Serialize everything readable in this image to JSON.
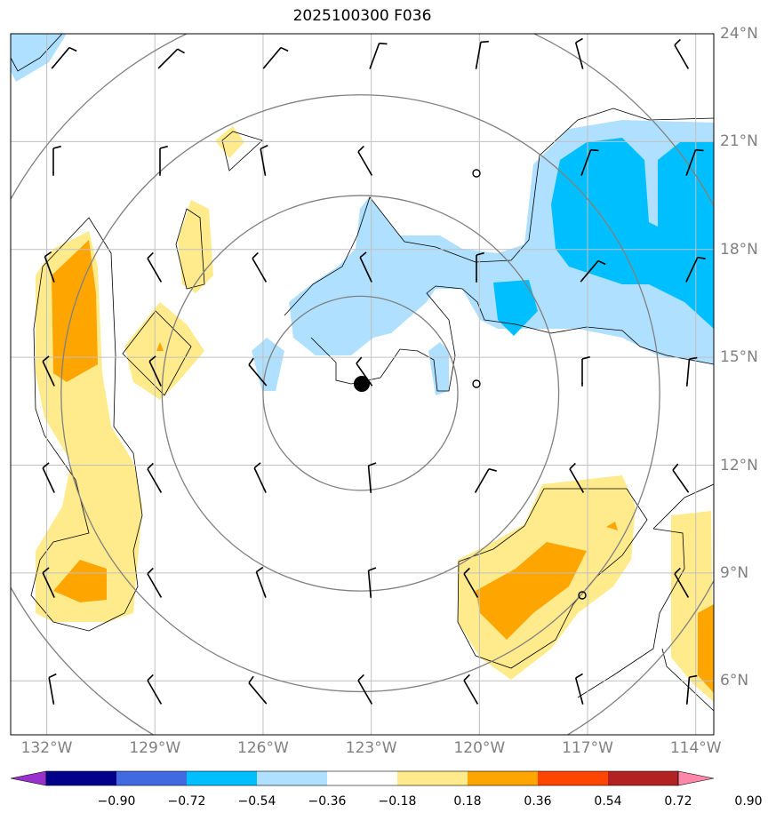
{
  "title": "2025100300 F036",
  "map": {
    "lon_range": [
      -133,
      -113.5
    ],
    "lat_range": [
      4.5,
      24
    ],
    "lat_ticks": [
      {
        "lat": 24,
        "label": "24°N"
      },
      {
        "lat": 21,
        "label": "21°N"
      },
      {
        "lat": 18,
        "label": "18°N"
      },
      {
        "lat": 15,
        "label": "15°N"
      },
      {
        "lat": 12,
        "label": "12°N"
      },
      {
        "lat": 9,
        "label": "9°N"
      },
      {
        "lat": 6,
        "label": "6°N"
      }
    ],
    "lon_ticks": [
      {
        "lon": -132,
        "label": "132°W"
      },
      {
        "lon": -129,
        "label": "129°W"
      },
      {
        "lon": -126,
        "label": "126°W"
      },
      {
        "lon": -123,
        "label": "123°W"
      },
      {
        "lon": -120,
        "label": "120°W"
      },
      {
        "lon": -117,
        "label": "117°W"
      },
      {
        "lon": -114,
        "label": "114°W"
      }
    ],
    "storm_center": {
      "lon": -123.3,
      "lat": 14.0
    },
    "range_rings_deg": [
      2.7,
      5.5,
      8.3,
      11.1
    ],
    "grid": true,
    "colors": {
      "neg_strong": "#00bfff",
      "neg_weak": "#b0e0ff",
      "pos_weak": "#ffeb8c",
      "pos_mid": "#ffa500",
      "ring": "#808080",
      "grid": "#c0c0c0"
    }
  },
  "colorbar": {
    "ticks": [
      "−0.90",
      "−0.72",
      "−0.54",
      "−0.36",
      "−0.18",
      "0.18",
      "0.36",
      "0.54",
      "0.72",
      "0.90"
    ],
    "colors": [
      "#9932cc",
      "#00008b",
      "#4169e1",
      "#00bfff",
      "#b0e0ff",
      "#ffffff",
      "#ffeb8c",
      "#ffa500",
      "#ff4500",
      "#b22222",
      "#ff88aa"
    ]
  }
}
